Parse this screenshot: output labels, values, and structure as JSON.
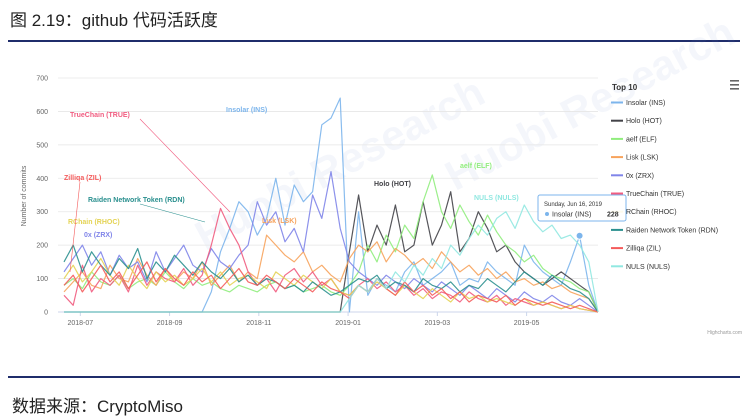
{
  "figure_title": "图 2.19：github 代码活跃度",
  "source_text": "数据来源：CryptoMiso",
  "watermark_text": "Huobi Research",
  "chart_data": {
    "type": "line",
    "title": "",
    "xlabel": "",
    "ylabel": "Number of commits",
    "ylim": [
      0,
      700
    ],
    "yticks": [
      0,
      100,
      200,
      300,
      400,
      500,
      600,
      700
    ],
    "x_start": "2018-06",
    "x_end": "2019-06",
    "xticks": [
      "2018-07",
      "2018-09",
      "2018-11",
      "2019-01",
      "2019-03",
      "2019-05"
    ],
    "legend_title": "Top 10",
    "legend_position": "right",
    "credits": "Highcharts.com",
    "menu_icon": "hamburger-icon",
    "grid": true,
    "tooltip": {
      "date": "Sunday, Jun 16, 2019",
      "series": "Insolar (INS)",
      "value": "228"
    },
    "series": [
      {
        "name": "Insolar (INS)",
        "label": "Insolar (INS)",
        "color": "#7cb5ec",
        "values": [
          0,
          0,
          0,
          0,
          0,
          0,
          0,
          0,
          0,
          0,
          0,
          0,
          0,
          0,
          0,
          0,
          60,
          180,
          250,
          330,
          300,
          230,
          280,
          400,
          260,
          380,
          330,
          360,
          560,
          580,
          640,
          0,
          300,
          50,
          100,
          80,
          60,
          120,
          150,
          80,
          100,
          120,
          150,
          80,
          100,
          90,
          150,
          120,
          100,
          80,
          200,
          150,
          120,
          100,
          80,
          150,
          228,
          80,
          0
        ]
      },
      {
        "name": "Holo (HOT)",
        "label": "Holo (HOT)",
        "color": "#434348",
        "values": [
          0,
          0,
          0,
          0,
          0,
          0,
          0,
          0,
          0,
          0,
          0,
          0,
          0,
          0,
          0,
          0,
          0,
          0,
          0,
          0,
          0,
          0,
          0,
          0,
          0,
          0,
          0,
          0,
          0,
          0,
          0,
          180,
          350,
          180,
          260,
          200,
          320,
          180,
          200,
          330,
          200,
          260,
          360,
          180,
          220,
          300,
          250,
          180,
          200,
          150,
          120,
          100,
          80,
          100,
          120,
          100,
          80,
          60,
          0
        ]
      },
      {
        "name": "aelf (ELF)",
        "label": "aelf (ELF)",
        "color": "#90ed7d",
        "values": [
          80,
          100,
          70,
          120,
          90,
          80,
          110,
          70,
          90,
          100,
          80,
          120,
          90,
          70,
          100,
          80,
          90,
          70,
          60,
          80,
          70,
          60,
          80,
          90,
          70,
          80,
          60,
          70,
          80,
          60,
          50,
          80,
          120,
          200,
          150,
          230,
          180,
          260,
          220,
          330,
          410,
          300,
          250,
          320,
          270,
          230,
          290,
          240,
          200,
          180,
          150,
          170,
          130,
          110,
          100,
          90,
          70,
          60,
          0
        ]
      },
      {
        "name": "Lisk (LSK)",
        "label": "Lisk (LSK)",
        "color": "#f7a35c",
        "values": [
          60,
          90,
          120,
          80,
          70,
          140,
          100,
          90,
          160,
          110,
          80,
          130,
          90,
          120,
          100,
          150,
          80,
          110,
          140,
          90,
          120,
          100,
          230,
          200,
          170,
          150,
          180,
          120,
          140,
          110,
          90,
          160,
          200,
          180,
          210,
          150,
          190,
          170,
          140,
          160,
          130,
          180,
          150,
          120,
          140,
          110,
          130,
          100,
          120,
          90,
          100,
          80,
          90,
          70,
          80,
          60,
          50,
          40,
          0
        ]
      },
      {
        "name": "0x (ZRX)",
        "label": "0x (ZRX)",
        "color": "#8085e9",
        "values": [
          120,
          160,
          200,
          140,
          180,
          110,
          170,
          130,
          150,
          90,
          180,
          120,
          160,
          200,
          140,
          120,
          190,
          150,
          130,
          170,
          200,
          330,
          260,
          300,
          210,
          250,
          180,
          350,
          280,
          420,
          250,
          150,
          120,
          100,
          80,
          110,
          90,
          70,
          100,
          80,
          60,
          90,
          70,
          50,
          80,
          60,
          40,
          70,
          50,
          30,
          60,
          40,
          30,
          50,
          30,
          20,
          40,
          20,
          0
        ]
      },
      {
        "name": "TrueChain (TRUE)",
        "label": "TrueChain (TRUE)",
        "color": "#f15c80",
        "values": [
          50,
          20,
          140,
          60,
          100,
          80,
          110,
          60,
          140,
          80,
          120,
          100,
          90,
          130,
          80,
          110,
          200,
          310,
          250,
          200,
          120,
          80,
          100,
          60,
          110,
          130,
          90,
          120,
          80,
          100,
          60,
          50,
          80,
          100,
          70,
          90,
          60,
          80,
          50,
          70,
          40,
          60,
          50,
          30,
          60,
          40,
          30,
          50,
          20,
          40,
          30,
          20,
          30,
          20,
          10,
          20,
          10,
          5,
          0
        ]
      },
      {
        "name": "RChain (RHOC)",
        "label": "RChain (RHOC)",
        "color": "#e4d354",
        "values": [
          100,
          140,
          90,
          120,
          160,
          110,
          80,
          140,
          100,
          70,
          120,
          90,
          110,
          80,
          100,
          130,
          90,
          120,
          80,
          100,
          110,
          90,
          70,
          120,
          100,
          80,
          110,
          90,
          70,
          100,
          60,
          50,
          80,
          60,
          90,
          70,
          50,
          80,
          60,
          40,
          70,
          50,
          30,
          60,
          40,
          50,
          30,
          40,
          30,
          20,
          40,
          20,
          30,
          20,
          10,
          20,
          10,
          5,
          0
        ]
      },
      {
        "name": "Raiden Network Token (RDN)",
        "label": "Raiden Network Token (RDN)",
        "color": "#2b908f",
        "values": [
          150,
          200,
          120,
          180,
          140,
          110,
          160,
          130,
          190,
          100,
          150,
          120,
          170,
          140,
          110,
          150,
          120,
          100,
          130,
          90,
          110,
          80,
          100,
          90,
          70,
          80,
          60,
          90,
          70,
          50,
          60,
          80,
          100,
          90,
          110,
          70,
          90,
          80,
          60,
          100,
          80,
          70,
          90,
          60,
          80,
          70,
          100,
          80,
          60,
          90,
          120,
          100,
          80,
          110,
          90,
          70,
          60,
          40,
          0
        ]
      },
      {
        "name": "Zilliqa (ZIL)",
        "label": "Zilliqa (ZIL)",
        "color": "#f45b5b",
        "values": [
          80,
          110,
          60,
          100,
          140,
          90,
          120,
          70,
          110,
          150,
          90,
          130,
          100,
          80,
          120,
          90,
          110,
          70,
          100,
          130,
          90,
          80,
          110,
          90,
          70,
          100,
          80,
          60,
          90,
          70,
          60,
          40,
          80,
          60,
          100,
          70,
          50,
          90,
          60,
          80,
          50,
          70,
          40,
          60,
          30,
          50,
          40,
          30,
          50,
          20,
          40,
          30,
          20,
          30,
          20,
          10,
          20,
          10,
          0
        ]
      },
      {
        "name": "NULS (NULS)",
        "label": "NULS (NULS)",
        "color": "#91e8e1",
        "values": [
          0,
          0,
          0,
          0,
          0,
          0,
          0,
          0,
          0,
          0,
          0,
          0,
          0,
          0,
          0,
          0,
          0,
          0,
          0,
          0,
          0,
          0,
          0,
          0,
          0,
          0,
          0,
          0,
          0,
          0,
          0,
          40,
          80,
          60,
          100,
          70,
          120,
          90,
          140,
          110,
          160,
          130,
          200,
          170,
          220,
          260,
          230,
          280,
          300,
          250,
          320,
          270,
          240,
          260,
          220,
          230,
          200,
          150,
          0
        ]
      }
    ]
  }
}
